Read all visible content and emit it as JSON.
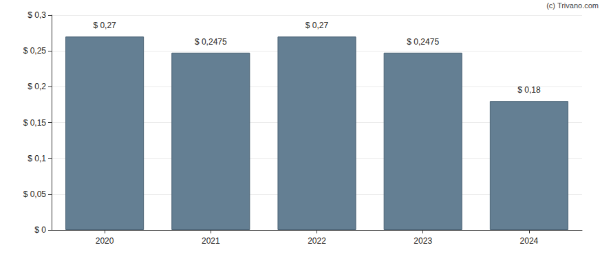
{
  "chart_data": {
    "type": "bar",
    "annotations": [
      "(c) Trivano.com"
    ],
    "categories": [
      "2020",
      "2021",
      "2022",
      "2023",
      "2024"
    ],
    "values": [
      0.27,
      0.2475,
      0.27,
      0.2475,
      0.18
    ],
    "value_labels": [
      "$ 0,27",
      "$ 0,2475",
      "$ 0,27",
      "$ 0,2475",
      "$ 0,18"
    ],
    "data_labels": true,
    "color": "#647f93",
    "ylim": [
      0,
      0.3
    ],
    "yticks": [
      {
        "value": 0,
        "label": "$ 0"
      },
      {
        "value": 0.05,
        "label": "$ 0,05"
      },
      {
        "value": 0.1,
        "label": "$ 0,1"
      },
      {
        "value": 0.15,
        "label": "$ 0,15"
      },
      {
        "value": 0.2,
        "label": "$ 0,2"
      },
      {
        "value": 0.25,
        "label": "$ 0,25"
      },
      {
        "value": 0.3,
        "label": "$ 0,3"
      }
    ],
    "grid": true
  }
}
